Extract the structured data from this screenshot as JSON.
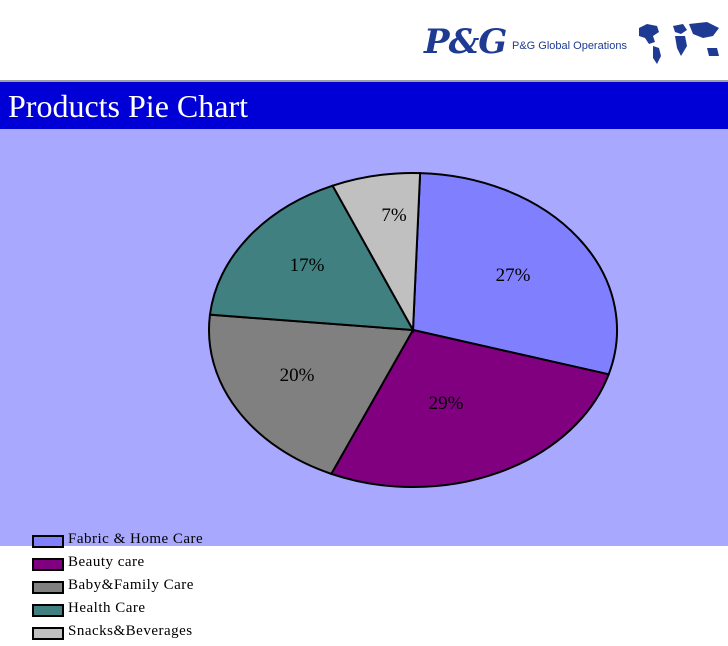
{
  "header": {
    "logo_text": "P&G",
    "logo_subtitle": "P&G Global Operations",
    "map_icon": "world-map-icon"
  },
  "slide": {
    "title": "Products Pie Chart"
  },
  "colors": {
    "title_bar": "#0000d6",
    "background": "#a8a8ff",
    "brand": "#1f3a93"
  },
  "chart_data": {
    "type": "pie",
    "title": "",
    "categories": [
      "Fabric & Home Care",
      "Beauty care",
      "Baby&Family Care",
      "Health Care",
      "Snacks&Beverages"
    ],
    "values": [
      29,
      27,
      20,
      17,
      7
    ],
    "labels": [
      "29%",
      "27%",
      "20%",
      "17%",
      "7%"
    ],
    "colors": [
      "#8080ff",
      "#800080",
      "#808080",
      "#408080",
      "#c0c0c0"
    ],
    "legend_position": "bottom-left",
    "legend": [
      "Fabric & Home Care",
      "Beauty care",
      "Baby&Family Care",
      "Health Care",
      "Snacks&Beverages"
    ]
  }
}
